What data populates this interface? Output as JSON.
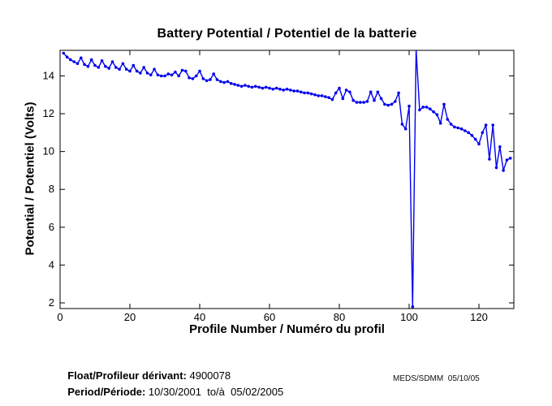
{
  "chart_data": {
    "type": "line",
    "title": "Battery Potential / Potentiel de la batterie",
    "xlabel": "Profile Number / Numéro du profil",
    "ylabel": "Potential / Potentiel (Volts)",
    "xlim": [
      0,
      130
    ],
    "ylim": [
      1.7,
      15.35
    ],
    "x_ticks": [
      0,
      20,
      40,
      60,
      80,
      100,
      120
    ],
    "y_ticks": [
      2,
      4,
      6,
      8,
      10,
      12,
      14
    ],
    "grid": false,
    "legend_position": "none",
    "line_color": "#0000EE",
    "marker": "point",
    "series_name": "Battery potential (Volts)",
    "x_start": 1,
    "x_step": 1,
    "values": [
      15.2,
      15.0,
      14.85,
      14.75,
      14.65,
      14.95,
      14.6,
      14.5,
      14.85,
      14.55,
      14.45,
      14.8,
      14.5,
      14.4,
      14.75,
      14.45,
      14.35,
      14.65,
      14.35,
      14.25,
      14.55,
      14.25,
      14.15,
      14.45,
      14.15,
      14.05,
      14.35,
      14.05,
      14.0,
      14.0,
      14.1,
      14.05,
      14.2,
      14.0,
      14.3,
      14.25,
      13.9,
      13.85,
      14.0,
      14.25,
      13.85,
      13.75,
      13.8,
      14.1,
      13.8,
      13.7,
      13.65,
      13.7,
      13.6,
      13.55,
      13.5,
      13.45,
      13.5,
      13.45,
      13.4,
      13.45,
      13.4,
      13.35,
      13.4,
      13.35,
      13.3,
      13.35,
      13.3,
      13.25,
      13.3,
      13.25,
      13.2,
      13.2,
      13.15,
      13.1,
      13.1,
      13.05,
      13.0,
      12.95,
      12.95,
      12.9,
      12.85,
      12.75,
      13.1,
      13.35,
      12.8,
      13.25,
      13.15,
      12.7,
      12.6,
      12.6,
      12.6,
      12.65,
      13.15,
      12.7,
      13.15,
      12.8,
      12.5,
      12.45,
      12.5,
      12.65,
      13.1,
      11.45,
      11.2,
      12.4,
      1.8,
      15.4,
      12.2,
      12.35,
      12.35,
      12.25,
      12.1,
      11.95,
      11.5,
      12.5,
      11.7,
      11.45,
      11.3,
      11.25,
      11.2,
      11.1,
      11.0,
      10.85,
      10.65,
      10.4,
      11.0,
      11.4,
      9.6,
      11.4,
      9.15,
      10.25,
      9.0,
      9.55,
      9.65
    ]
  },
  "footer": {
    "float_label": "Float/Profileur dérivant:",
    "float_value": " 4900078",
    "period_label": "Period/Période:",
    "period_value": " 10/30/2001  to/à  05/02/2005",
    "credit": "MEDS/SDMM  05/10/05"
  }
}
